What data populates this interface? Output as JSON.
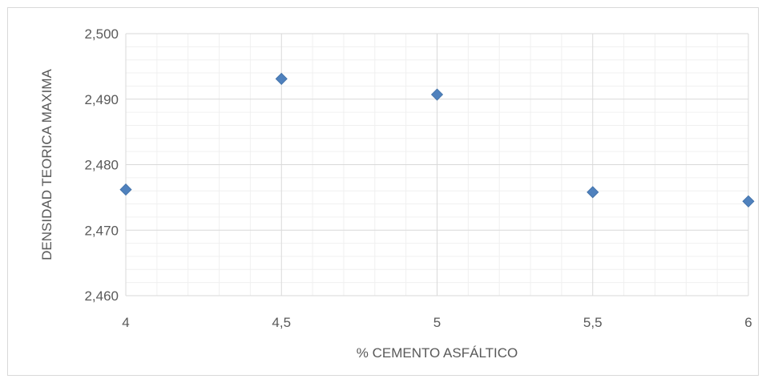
{
  "chart_data": {
    "type": "scatter",
    "title": "",
    "xlabel": "% CEMENTO ASFÁLTICO",
    "ylabel": "DENSIDAD TEORICA MAXIMA",
    "xlim": [
      4,
      6
    ],
    "ylim": [
      2.46,
      2.5
    ],
    "x_ticks": [
      4,
      4.5,
      5,
      5.5,
      6
    ],
    "x_tick_labels": [
      "4",
      "4,5",
      "5",
      "5,5",
      "6"
    ],
    "y_ticks": [
      2.46,
      2.47,
      2.48,
      2.49,
      2.5
    ],
    "y_tick_labels": [
      "2,460",
      "2,470",
      "2,480",
      "2,490",
      "2,500"
    ],
    "grid": true,
    "marker": "diamond",
    "marker_color": "#4f81bd",
    "gridline_color": "#d9d9d9",
    "series": [
      {
        "x": [
          4,
          4.5,
          5,
          5.5,
          6
        ],
        "y": [
          2.4762,
          2.4931,
          2.4907,
          2.4758,
          2.4744
        ]
      }
    ]
  }
}
